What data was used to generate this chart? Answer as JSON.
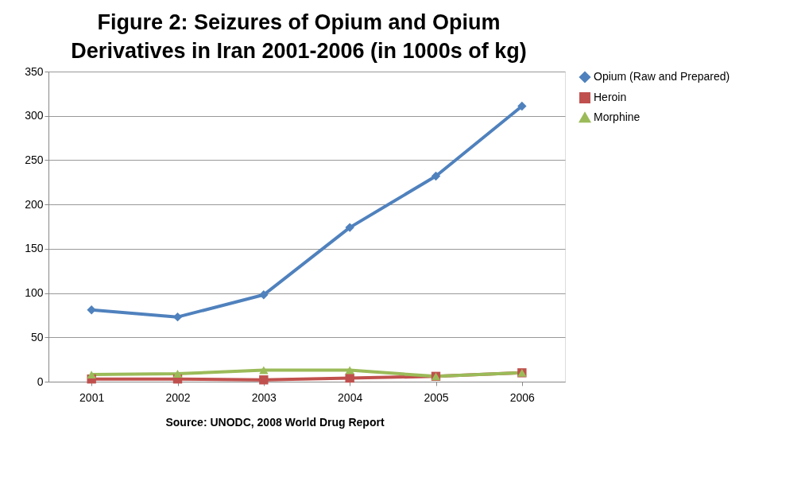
{
  "chart_data": {
    "type": "line",
    "title": "Figure 2: Seizures of Opium and Opium Derivatives in Iran 2001-2006 (in 1000s of kg)",
    "categories": [
      "2001",
      "2002",
      "2003",
      "2004",
      "2005",
      "2006"
    ],
    "series": [
      {
        "name": "Opium (Raw and Prepared)",
        "color": "#4f81bd",
        "marker": "diamond",
        "values": [
          81,
          73,
          98,
          174,
          232,
          311
        ]
      },
      {
        "name": "Heroin",
        "color": "#c0504d",
        "marker": "square",
        "values": [
          3,
          3,
          2,
          4,
          6,
          10
        ]
      },
      {
        "name": "Morphine",
        "color": "#9bbb59",
        "marker": "triangle",
        "values": [
          8,
          9,
          13,
          13,
          6,
          10
        ]
      }
    ],
    "ylim": [
      0,
      350
    ],
    "yticks": [
      0,
      50,
      100,
      150,
      200,
      250,
      300,
      350
    ],
    "grid": "y",
    "legend": "right",
    "line_style": "solid",
    "annotations": [
      "Source: UNODC, 2008 World Drug Report"
    ]
  }
}
